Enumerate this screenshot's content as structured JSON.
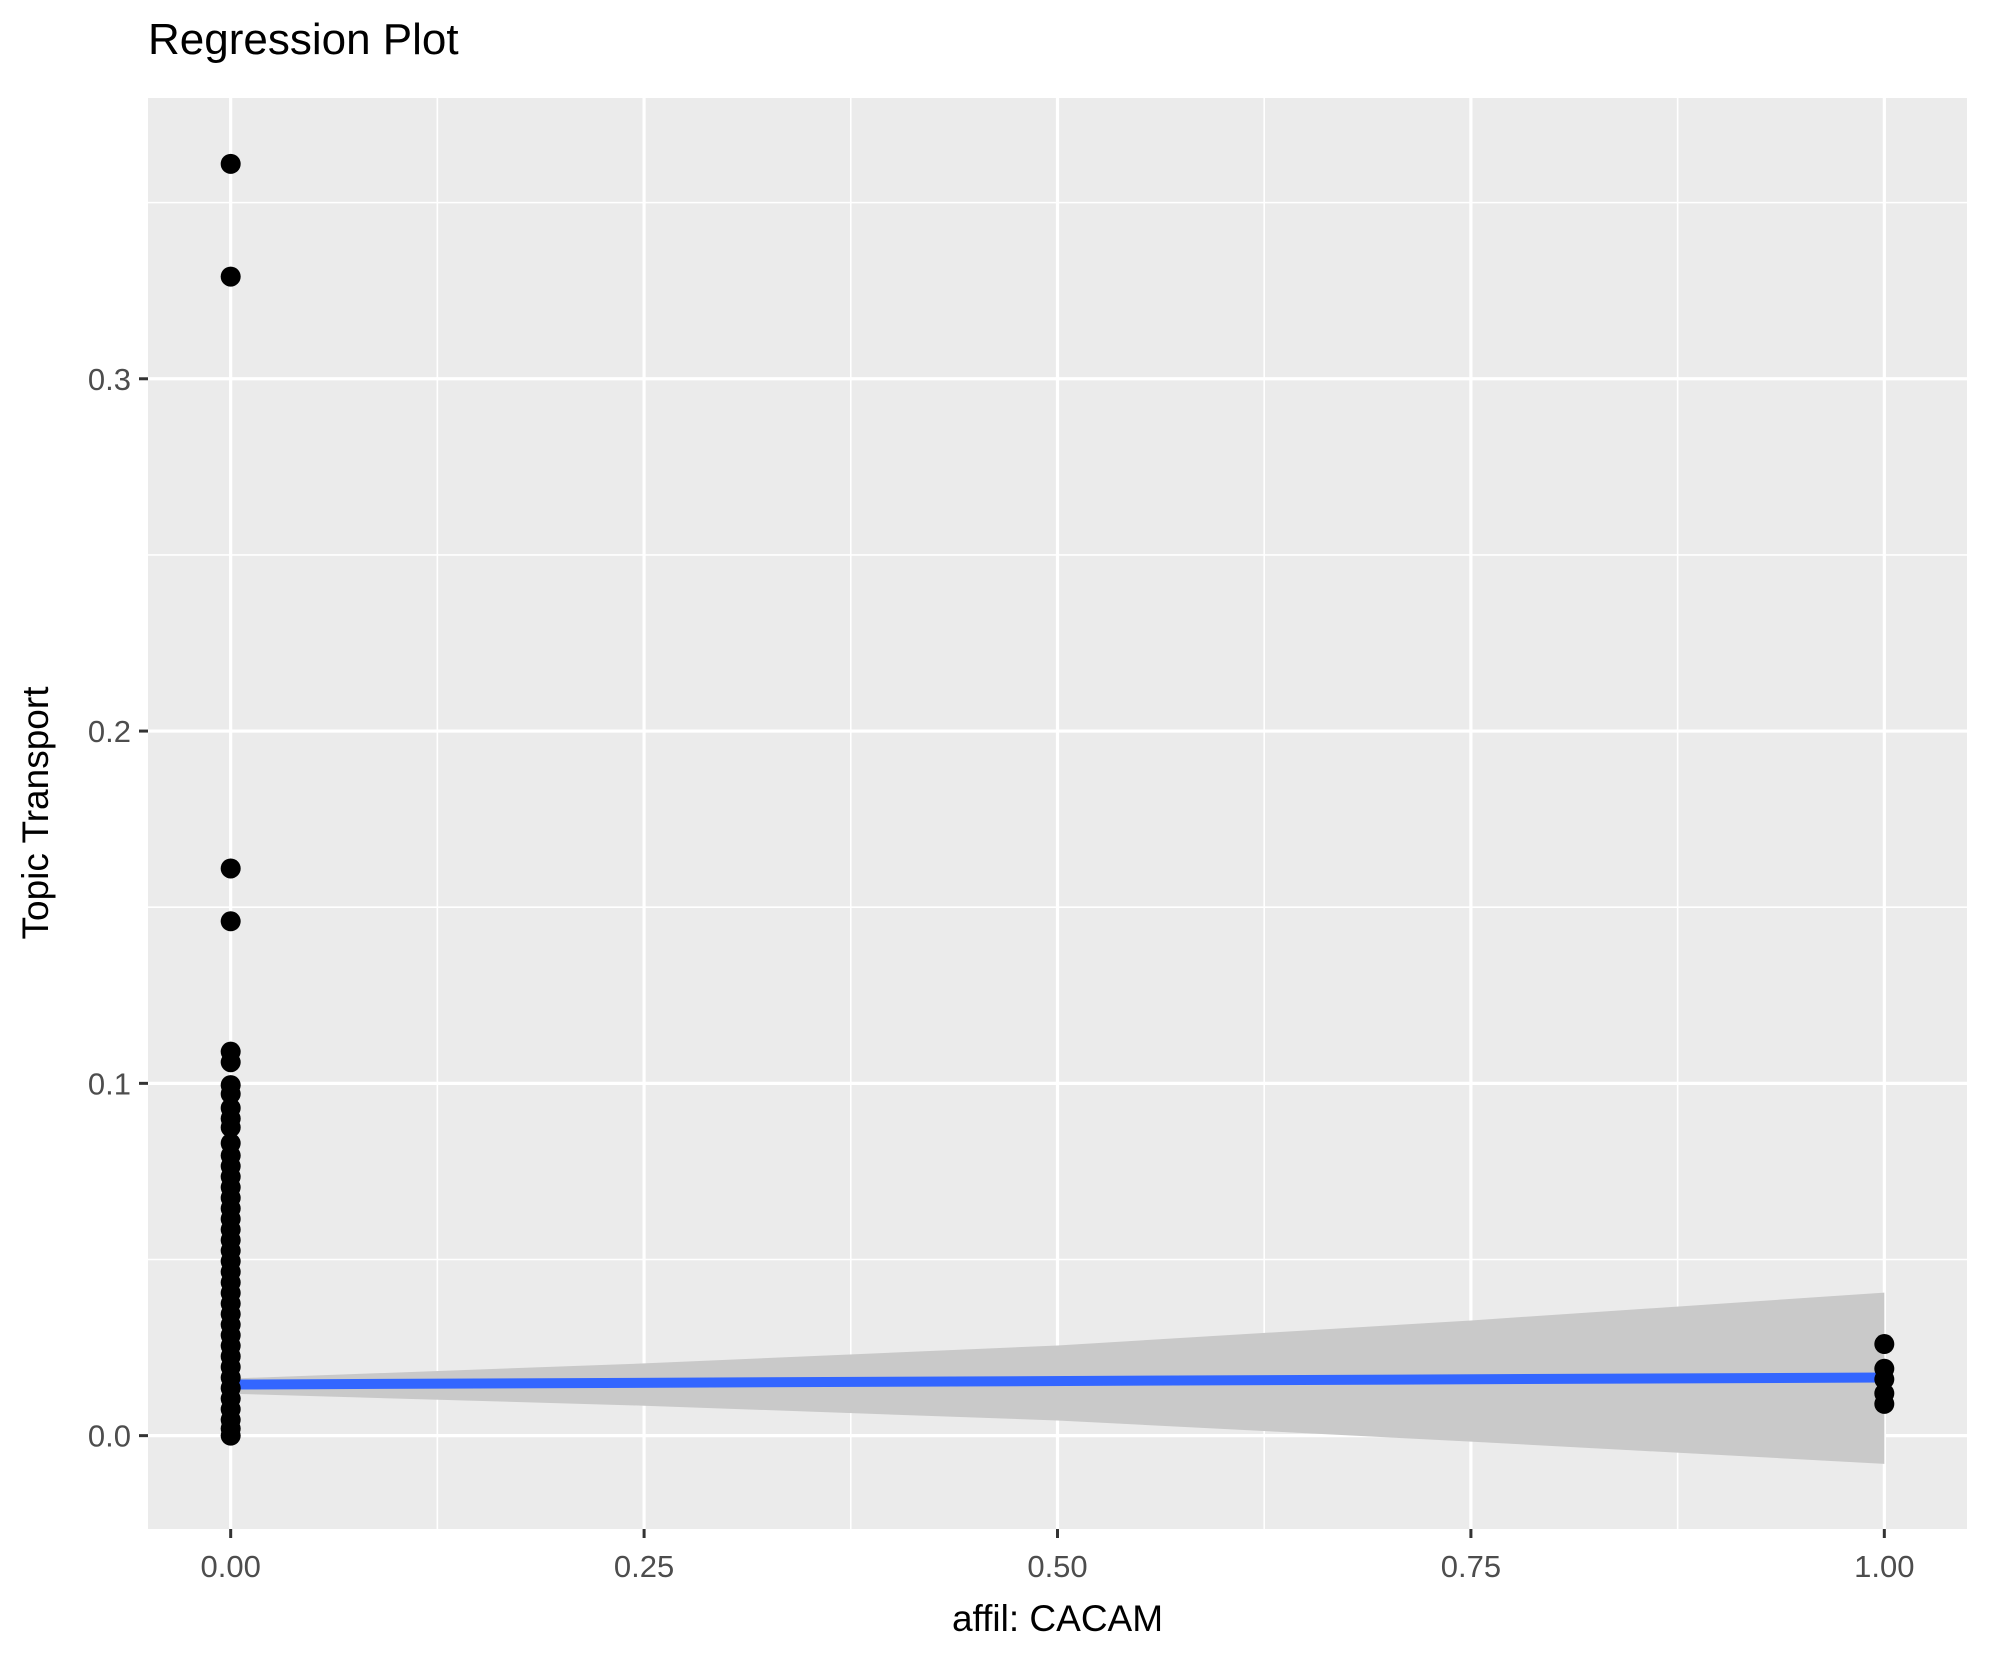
{
  "chart_data": {
    "type": "scatter",
    "title": "Regression Plot",
    "xlabel": "affil: CACAM",
    "ylabel": "Topic Transport",
    "xlim": [
      -0.05,
      1.05
    ],
    "ylim": [
      -0.0265,
      0.3797
    ],
    "x_tick_values": [
      0,
      0.25,
      0.5,
      0.75,
      1
    ],
    "x_tick_labels": [
      "0.00",
      "0.25",
      "0.50",
      "0.75",
      "1.00"
    ],
    "y_tick_values": [
      0,
      0.1,
      0.2,
      0.3
    ],
    "y_tick_labels": [
      "0.0",
      "0.1",
      "0.2",
      "0.3"
    ],
    "x_minor_gridlines": [
      0.125,
      0.375,
      0.625,
      0.875
    ],
    "y_minor_gridlines": [
      0.05,
      0.15,
      0.25,
      0.35
    ],
    "grid": "white major and minor gridlines on grey panel",
    "legend": "none",
    "series": [
      {
        "name": "points_at_affil_0",
        "x": 0,
        "y_values": [
          0.361,
          0.329,
          0.161,
          0.146,
          0.109,
          0.106,
          0.0995,
          0.097,
          0.093,
          0.09,
          0.0875,
          0.083,
          0.0795,
          0.0765,
          0.0735,
          0.0705,
          0.0675,
          0.0645,
          0.0615,
          0.0585,
          0.0555,
          0.0525,
          0.0495,
          0.0465,
          0.0435,
          0.0405,
          0.0375,
          0.0345,
          0.0315,
          0.0285,
          0.0255,
          0.0225,
          0.0195,
          0.0165,
          0.0135,
          0.0105,
          0.0075,
          0.0045,
          0.002,
          0.0
        ]
      },
      {
        "name": "points_at_affil_1",
        "x": 1,
        "y_values": [
          0.026,
          0.019,
          0.016,
          0.012,
          0.009
        ]
      }
    ],
    "regression_line": {
      "x": [
        0,
        1
      ],
      "y": [
        0.0145,
        0.0165
      ]
    },
    "confidence_band": {
      "x": [
        0,
        0.25,
        0.5,
        0.75,
        1
      ],
      "upper": [
        0.0162,
        0.0205,
        0.0256,
        0.0327,
        0.0406
      ],
      "lower": [
        0.0119,
        0.0085,
        0.0043,
        -0.0017,
        -0.008
      ]
    },
    "colors": {
      "point": "#000000",
      "line": "#3366FF",
      "band": "#C9C9C9",
      "panel": "#EBEBEB",
      "gridline": "#FFFFFF",
      "tick_label": "#4D4D4D",
      "tick_mark": "#333333",
      "text": "#000000"
    }
  }
}
